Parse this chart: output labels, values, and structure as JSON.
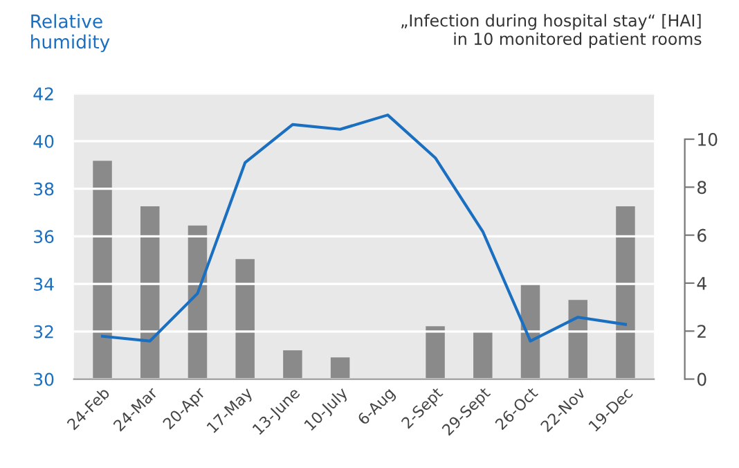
{
  "chart_data": {
    "type": "bar",
    "ylabel": "Relative\nhumidity",
    "y2label": "„Infection during hospital stay“ [HAI]\nin 10 monitored patient rooms",
    "categories": [
      "24-Feb",
      "24-Mar",
      "20-Apr",
      "17-May",
      "13-June",
      "10-July",
      "6-Aug",
      "2-Sept",
      "29-Sept",
      "26-Oct",
      "22-Nov",
      "19-Dec"
    ],
    "series": [
      {
        "axis": "y2",
        "color": "#8a8a8a",
        "values": [
          9.1,
          7.2,
          6.4,
          5.0,
          1.2,
          0.9,
          0,
          2.2,
          2.0,
          4.0,
          3.3,
          7.2
        ]
      },
      {
        "type": "line",
        "axis": "y",
        "color": "#1a6fc0",
        "values": [
          31.8,
          31.6,
          33.6,
          39.1,
          40.7,
          40.5,
          41.1,
          39.3,
          36.2,
          31.6,
          32.6,
          32.3
        ]
      }
    ],
    "ylim": [
      30,
      42
    ],
    "yticks": [
      30,
      32,
      34,
      36,
      38,
      40,
      42
    ],
    "y2lim": [
      0,
      11.9
    ],
    "y2ticks": [
      0,
      2,
      4,
      6,
      8,
      10
    ],
    "grid": "y",
    "legend": false,
    "marker": "none",
    "line_style": "solid"
  }
}
